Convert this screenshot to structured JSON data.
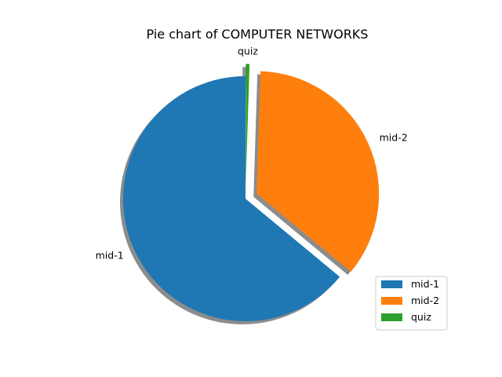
{
  "chart_data": {
    "type": "pie",
    "title": "Pie chart of COMPUTER NETWORKS",
    "categories": [
      "mid-1",
      "mid-2",
      "quiz"
    ],
    "values": [
      64,
      35.5,
      0.5
    ],
    "colors": [
      "#1f77b4",
      "#ff7f0e",
      "#2ca02c"
    ],
    "exploded": [
      "mid-2",
      "quiz"
    ],
    "shadow": true,
    "start_angle_deg": 90,
    "legend_position": "lower-right"
  }
}
